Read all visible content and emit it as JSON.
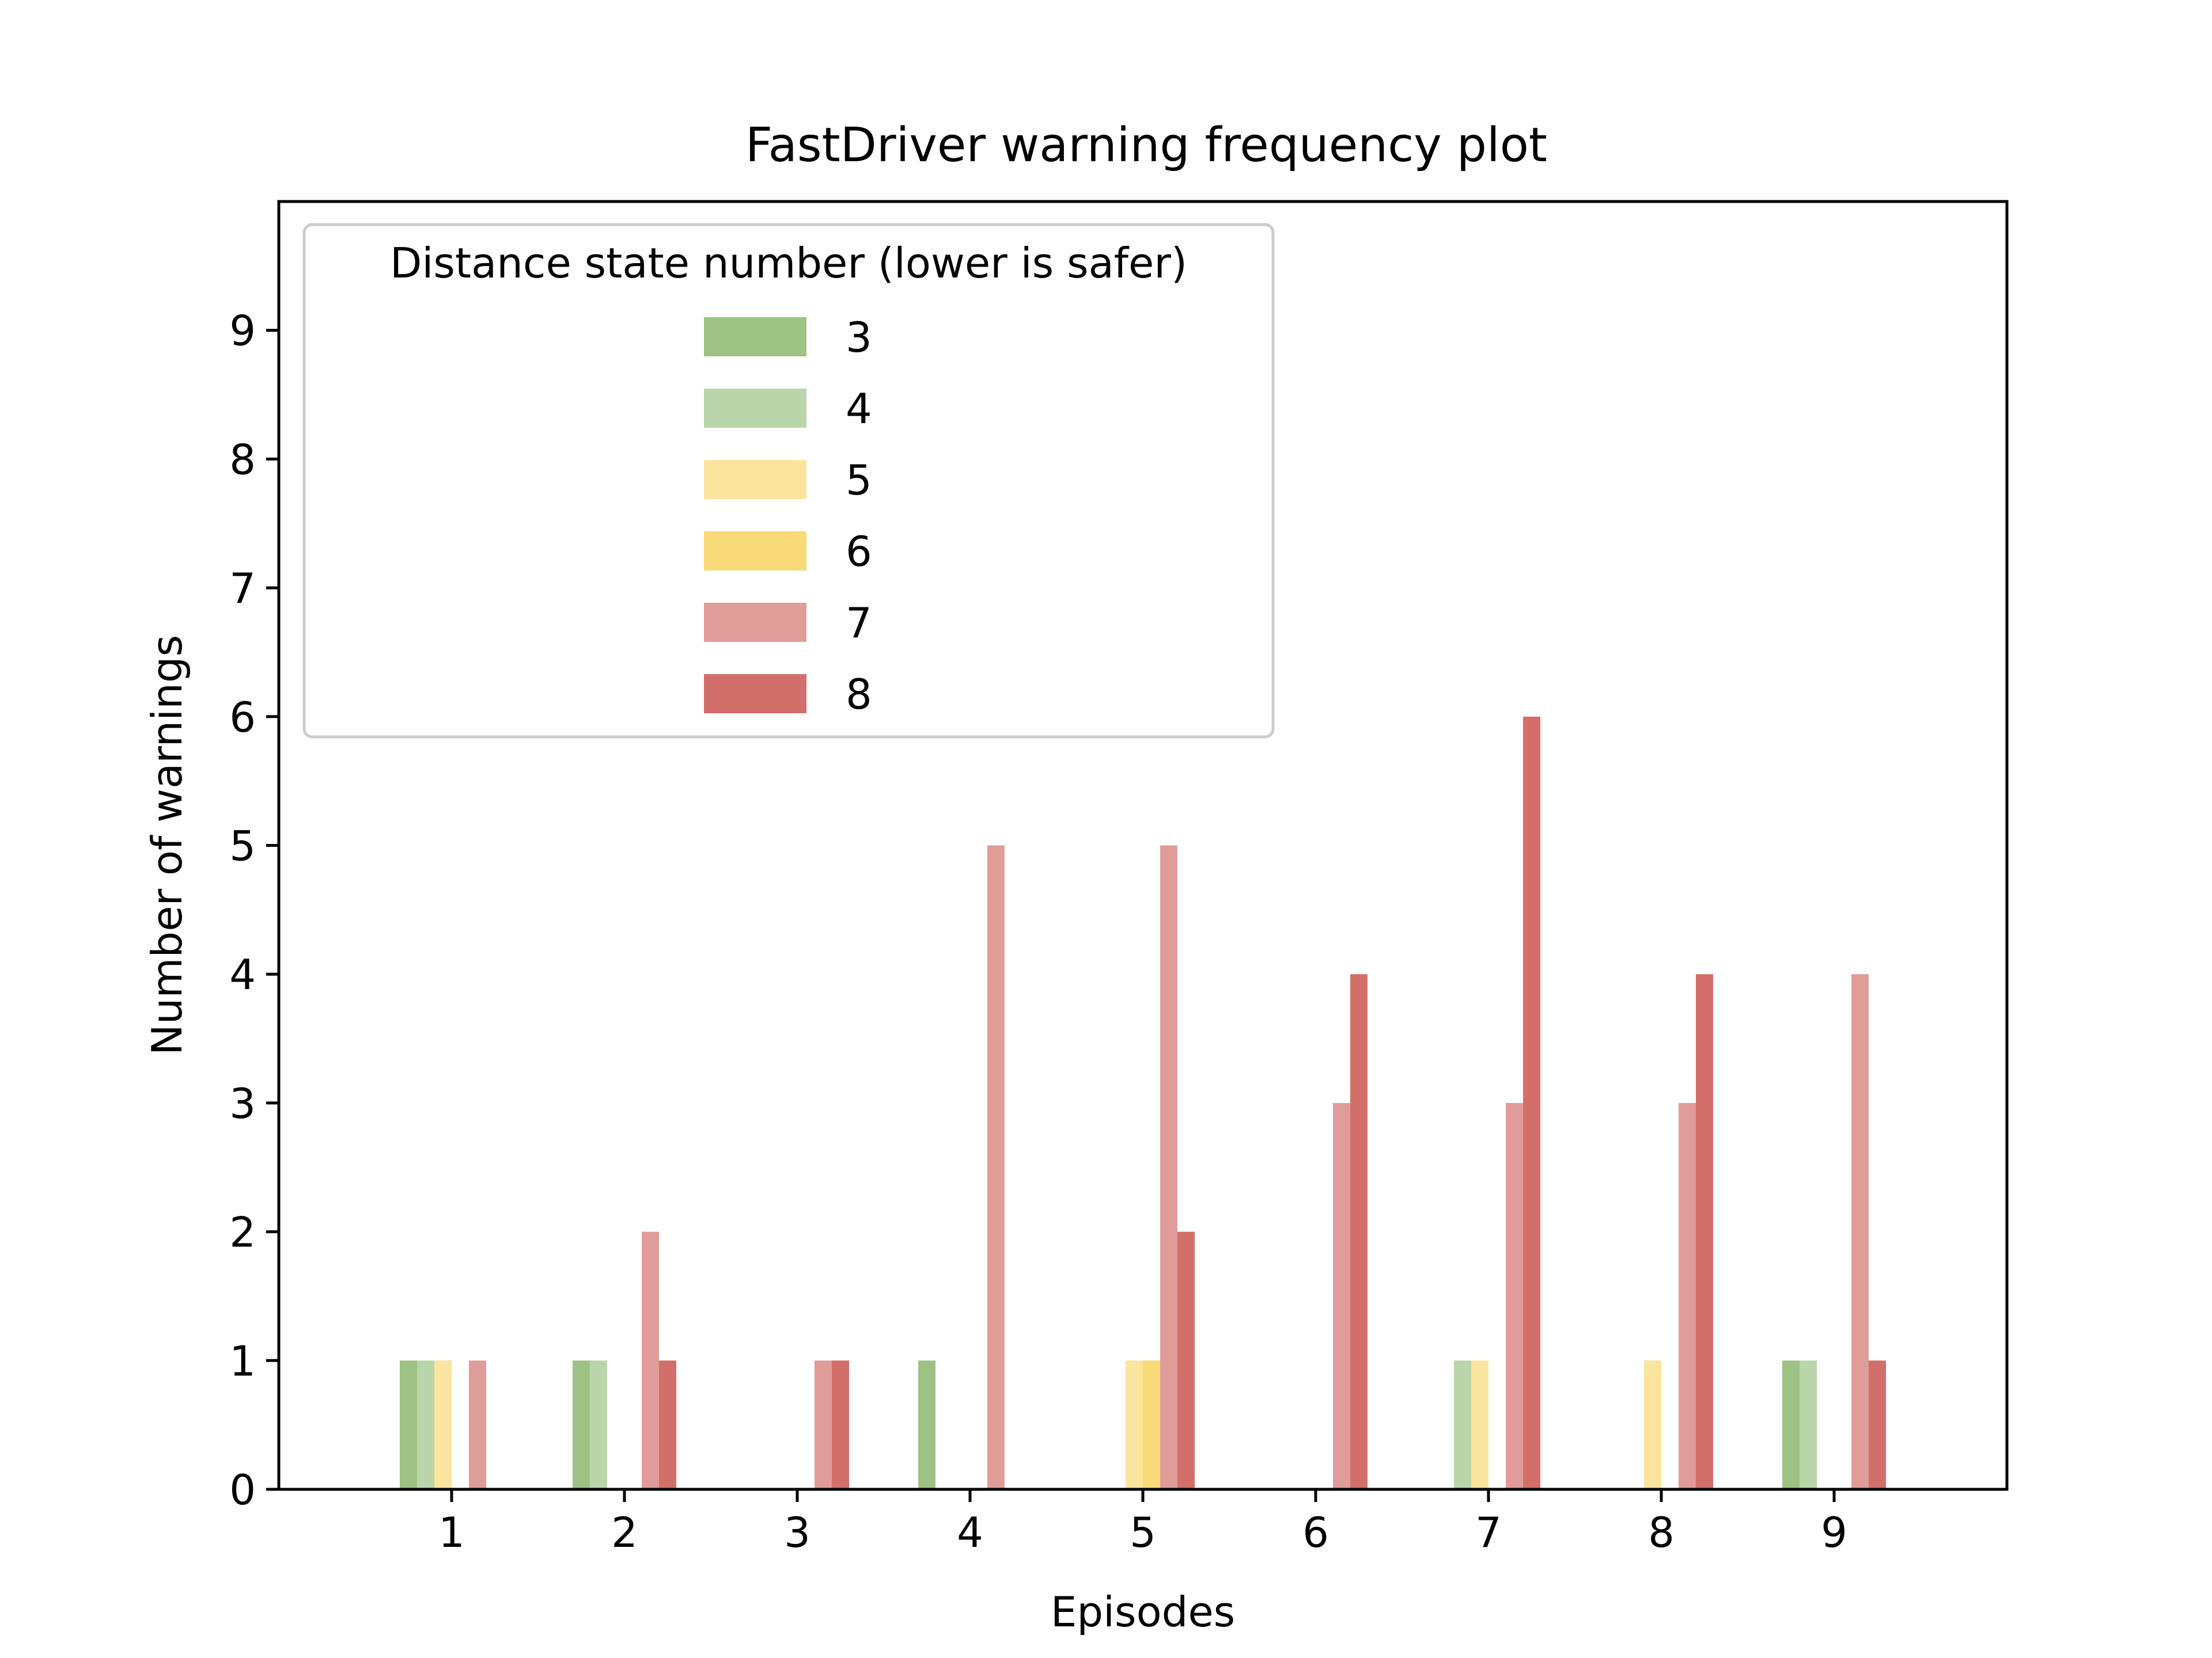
{
  "chart_data": {
    "type": "bar",
    "title": "FastDriver warning frequency plot",
    "xlabel": "Episodes",
    "ylabel": "Number of warnings",
    "categories": [
      "1",
      "2",
      "3",
      "4",
      "5",
      "6",
      "7",
      "8",
      "9"
    ],
    "xlim": [
      0,
      10
    ],
    "ylim": [
      0,
      10
    ],
    "yticks": [
      0,
      1,
      2,
      3,
      4,
      5,
      6,
      7,
      8,
      9
    ],
    "grid": false,
    "legend": {
      "title": "Distance state number (lower is safer)",
      "placement": "top-left"
    },
    "series": [
      {
        "name": "3",
        "color": "#9dc284",
        "values": [
          1,
          1,
          0,
          1,
          0,
          0,
          0,
          0,
          1
        ]
      },
      {
        "name": "4",
        "color": "#bad5aa",
        "values": [
          1,
          1,
          0,
          0,
          0,
          0,
          1,
          0,
          1
        ]
      },
      {
        "name": "5",
        "color": "#fbe49e",
        "values": [
          1,
          0,
          0,
          0,
          1,
          0,
          1,
          1,
          0
        ]
      },
      {
        "name": "6",
        "color": "#f9da78",
        "values": [
          0,
          0,
          0,
          0,
          1,
          0,
          0,
          0,
          0
        ]
      },
      {
        "name": "7",
        "color": "#df9c99",
        "values": [
          1,
          2,
          1,
          5,
          5,
          3,
          3,
          3,
          4
        ]
      },
      {
        "name": "8",
        "color": "#d36f6b",
        "values": [
          0,
          1,
          1,
          0,
          2,
          4,
          6,
          4,
          1
        ]
      }
    ]
  }
}
